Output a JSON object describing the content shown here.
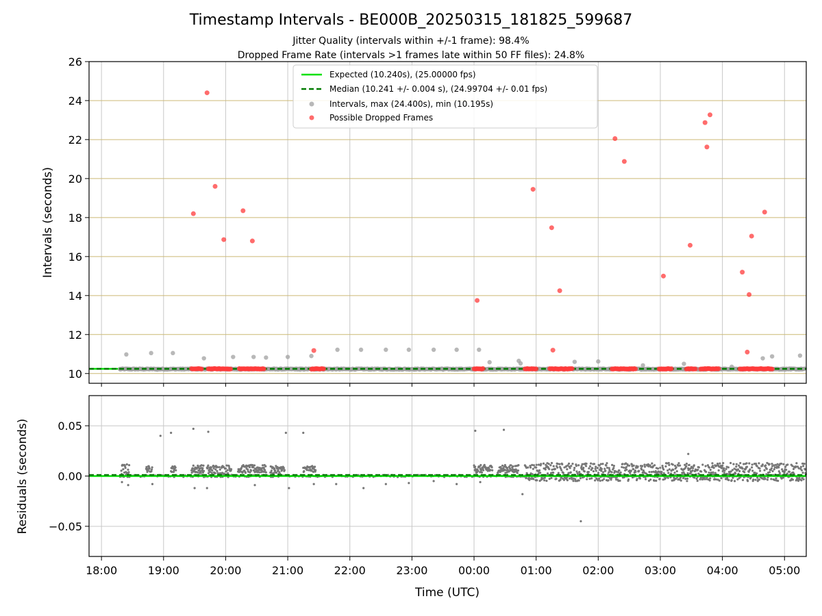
{
  "chart_data": [
    {
      "type": "scatter",
      "title": "Timestamp Intervals - BE000B_20250315_181825_599687",
      "subtitles": [
        "Jitter Quality (intervals within +/-1 frame): 98.4%",
        "Dropped Frame Rate (intervals >1 frames late within 50 FF files): 24.8%"
      ],
      "xlabel": "",
      "ylabel": "Intervals (seconds)",
      "xlim": [
        -0.2,
        11.35
      ],
      "ylim": [
        9.5,
        26
      ],
      "y_ticks": [
        10,
        12,
        14,
        16,
        18,
        20,
        22,
        24,
        26
      ],
      "y_gridlines": {
        "color": "#ccb974"
      },
      "x_gridlines": {
        "color": "#c8c8c8"
      },
      "legend_position": "top-center",
      "legend": [
        "Expected (10.240s), (25.00000 fps)",
        "Median (10.241 +/- 0.004 s), (24.99704 +/- 0.01 fps)",
        "Intervals, max (24.400s), min (10.195s)",
        "Possible Dropped Frames"
      ],
      "expected": 10.24,
      "median": 10.241,
      "series": [
        {
          "name": "Intervals, max (24.400s), min (10.195s)",
          "color": "#a0a0a0",
          "points": [
            [
              0.4,
              10.98
            ],
            [
              0.8,
              11.05
            ],
            [
              1.15,
              11.05
            ],
            [
              1.65,
              10.78
            ],
            [
              2.12,
              10.85
            ],
            [
              2.45,
              10.85
            ],
            [
              2.65,
              10.82
            ],
            [
              3.0,
              10.85
            ],
            [
              3.38,
              10.9
            ],
            [
              3.8,
              11.22
            ],
            [
              4.18,
              11.22
            ],
            [
              4.58,
              11.22
            ],
            [
              4.95,
              11.22
            ],
            [
              5.35,
              11.22
            ],
            [
              5.72,
              11.22
            ],
            [
              6.08,
              11.22
            ],
            [
              6.25,
              10.58
            ],
            [
              6.72,
              10.65
            ],
            [
              6.75,
              10.52
            ],
            [
              7.62,
              10.6
            ],
            [
              8.0,
              10.62
            ],
            [
              8.72,
              10.42
            ],
            [
              9.38,
              10.5
            ],
            [
              10.15,
              10.35
            ],
            [
              10.65,
              10.78
            ],
            [
              10.8,
              10.88
            ],
            [
              11.25,
              10.92
            ],
            [
              0.3,
              10.22
            ],
            [
              0.9,
              10.2
            ],
            [
              1.3,
              10.22
            ],
            [
              2.8,
              10.21
            ],
            [
              3.2,
              10.2
            ],
            [
              4.0,
              10.22
            ],
            [
              4.8,
              10.21
            ],
            [
              5.5,
              10.2
            ],
            [
              7.2,
              10.22
            ],
            [
              7.8,
              10.21
            ],
            [
              8.5,
              10.2
            ],
            [
              9.0,
              10.22
            ],
            [
              9.9,
              10.2
            ],
            [
              10.1,
              10.22
            ],
            [
              11.1,
              10.21
            ]
          ]
        },
        {
          "name": "Possible Dropped Frames",
          "color": "#ff3b3b",
          "points": [
            [
              1.48,
              18.2
            ],
            [
              1.7,
              24.4
            ],
            [
              1.83,
              19.6
            ],
            [
              1.97,
              16.87
            ],
            [
              2.28,
              18.35
            ],
            [
              2.43,
              16.8
            ],
            [
              3.42,
              11.18
            ],
            [
              6.05,
              13.75
            ],
            [
              6.95,
              19.45
            ],
            [
              7.25,
              17.48
            ],
            [
              7.27,
              11.2
            ],
            [
              7.38,
              14.25
            ],
            [
              8.27,
              22.05
            ],
            [
              8.42,
              20.88
            ],
            [
              9.05,
              15.0
            ],
            [
              9.48,
              16.58
            ],
            [
              9.72,
              22.87
            ],
            [
              9.75,
              21.62
            ],
            [
              9.8,
              23.27
            ],
            [
              10.32,
              15.2
            ],
            [
              10.4,
              11.1
            ],
            [
              10.43,
              14.05
            ],
            [
              10.47,
              17.05
            ],
            [
              10.68,
              18.28
            ]
          ],
          "clusters": [
            [
              1.45,
              1.62
            ],
            [
              1.72,
              2.08
            ],
            [
              2.22,
              2.62
            ],
            [
              3.38,
              3.58
            ],
            [
              6.0,
              6.15
            ],
            [
              6.82,
              7.0
            ],
            [
              7.22,
              7.58
            ],
            [
              8.22,
              8.6
            ],
            [
              8.98,
              9.18
            ],
            [
              9.42,
              9.58
            ],
            [
              9.65,
              9.95
            ],
            [
              10.28,
              10.82
            ]
          ],
          "cluster_value": 10.24
        }
      ]
    },
    {
      "type": "scatter",
      "xlabel": "Time (UTC)",
      "ylabel": "Residuals (seconds)",
      "xlim": [
        -0.2,
        11.35
      ],
      "ylim": [
        -0.08,
        0.08
      ],
      "y_ticks": [
        0.05,
        0.0,
        -0.05
      ],
      "y_tick_labels": [
        "0.05",
        "0.00",
        "−0.05"
      ],
      "x_tick_labels": [
        "18:00",
        "19:00",
        "20:00",
        "21:00",
        "22:00",
        "23:00",
        "00:00",
        "01:00",
        "02:00",
        "03:00",
        "04:00",
        "05:00"
      ],
      "series": [
        {
          "name": "",
          "color": "#777777",
          "points": [
            [
              0.95,
              0.04
            ],
            [
              1.12,
              0.043
            ],
            [
              1.48,
              0.047
            ],
            [
              1.72,
              0.044
            ],
            [
              2.97,
              0.043
            ],
            [
              3.25,
              0.043
            ],
            [
              6.02,
              0.045
            ],
            [
              6.48,
              0.046
            ],
            [
              9.45,
              0.022
            ],
            [
              7.72,
              -0.045
            ],
            [
              6.78,
              -0.018
            ],
            [
              0.82,
              -0.008
            ],
            [
              0.43,
              -0.009
            ],
            [
              0.33,
              -0.006
            ],
            [
              1.5,
              -0.012
            ],
            [
              1.7,
              -0.012
            ],
            [
              2.47,
              -0.009
            ],
            [
              3.02,
              -0.012
            ],
            [
              3.42,
              -0.008
            ],
            [
              3.78,
              -0.008
            ],
            [
              4.22,
              -0.012
            ],
            [
              4.58,
              -0.008
            ],
            [
              4.95,
              -0.007
            ],
            [
              5.72,
              -0.008
            ],
            [
              5.35,
              -0.005
            ],
            [
              6.1,
              -0.006
            ]
          ],
          "bands": [
            {
              "x": [
                0.32,
                0.45
              ],
              "mid": 0.006,
              "spread": 0.006
            },
            {
              "x": [
                0.72,
                0.82
              ],
              "mid": 0.007,
              "spread": 0.003
            },
            {
              "x": [
                1.12,
                1.2
              ],
              "mid": 0.007,
              "spread": 0.003
            },
            {
              "x": [
                1.45,
                1.65
              ],
              "mid": 0.007,
              "spread": 0.004
            },
            {
              "x": [
                1.7,
                2.1
              ],
              "mid": 0.006,
              "spread": 0.005
            },
            {
              "x": [
                2.2,
                2.65
              ],
              "mid": 0.007,
              "spread": 0.004
            },
            {
              "x": [
                2.72,
                2.95
              ],
              "mid": 0.006,
              "spread": 0.004
            },
            {
              "x": [
                3.25,
                3.45
              ],
              "mid": 0.007,
              "spread": 0.003
            },
            {
              "x": [
                6.0,
                6.3
              ],
              "mid": 0.007,
              "spread": 0.004
            },
            {
              "x": [
                6.38,
                6.72
              ],
              "mid": 0.007,
              "spread": 0.004
            },
            {
              "x": [
                6.82,
                11.35
              ],
              "mid": 0.004,
              "spread": 0.009
            }
          ]
        }
      ],
      "expected_residual": 0.0,
      "median_residual": 0.001
    }
  ]
}
